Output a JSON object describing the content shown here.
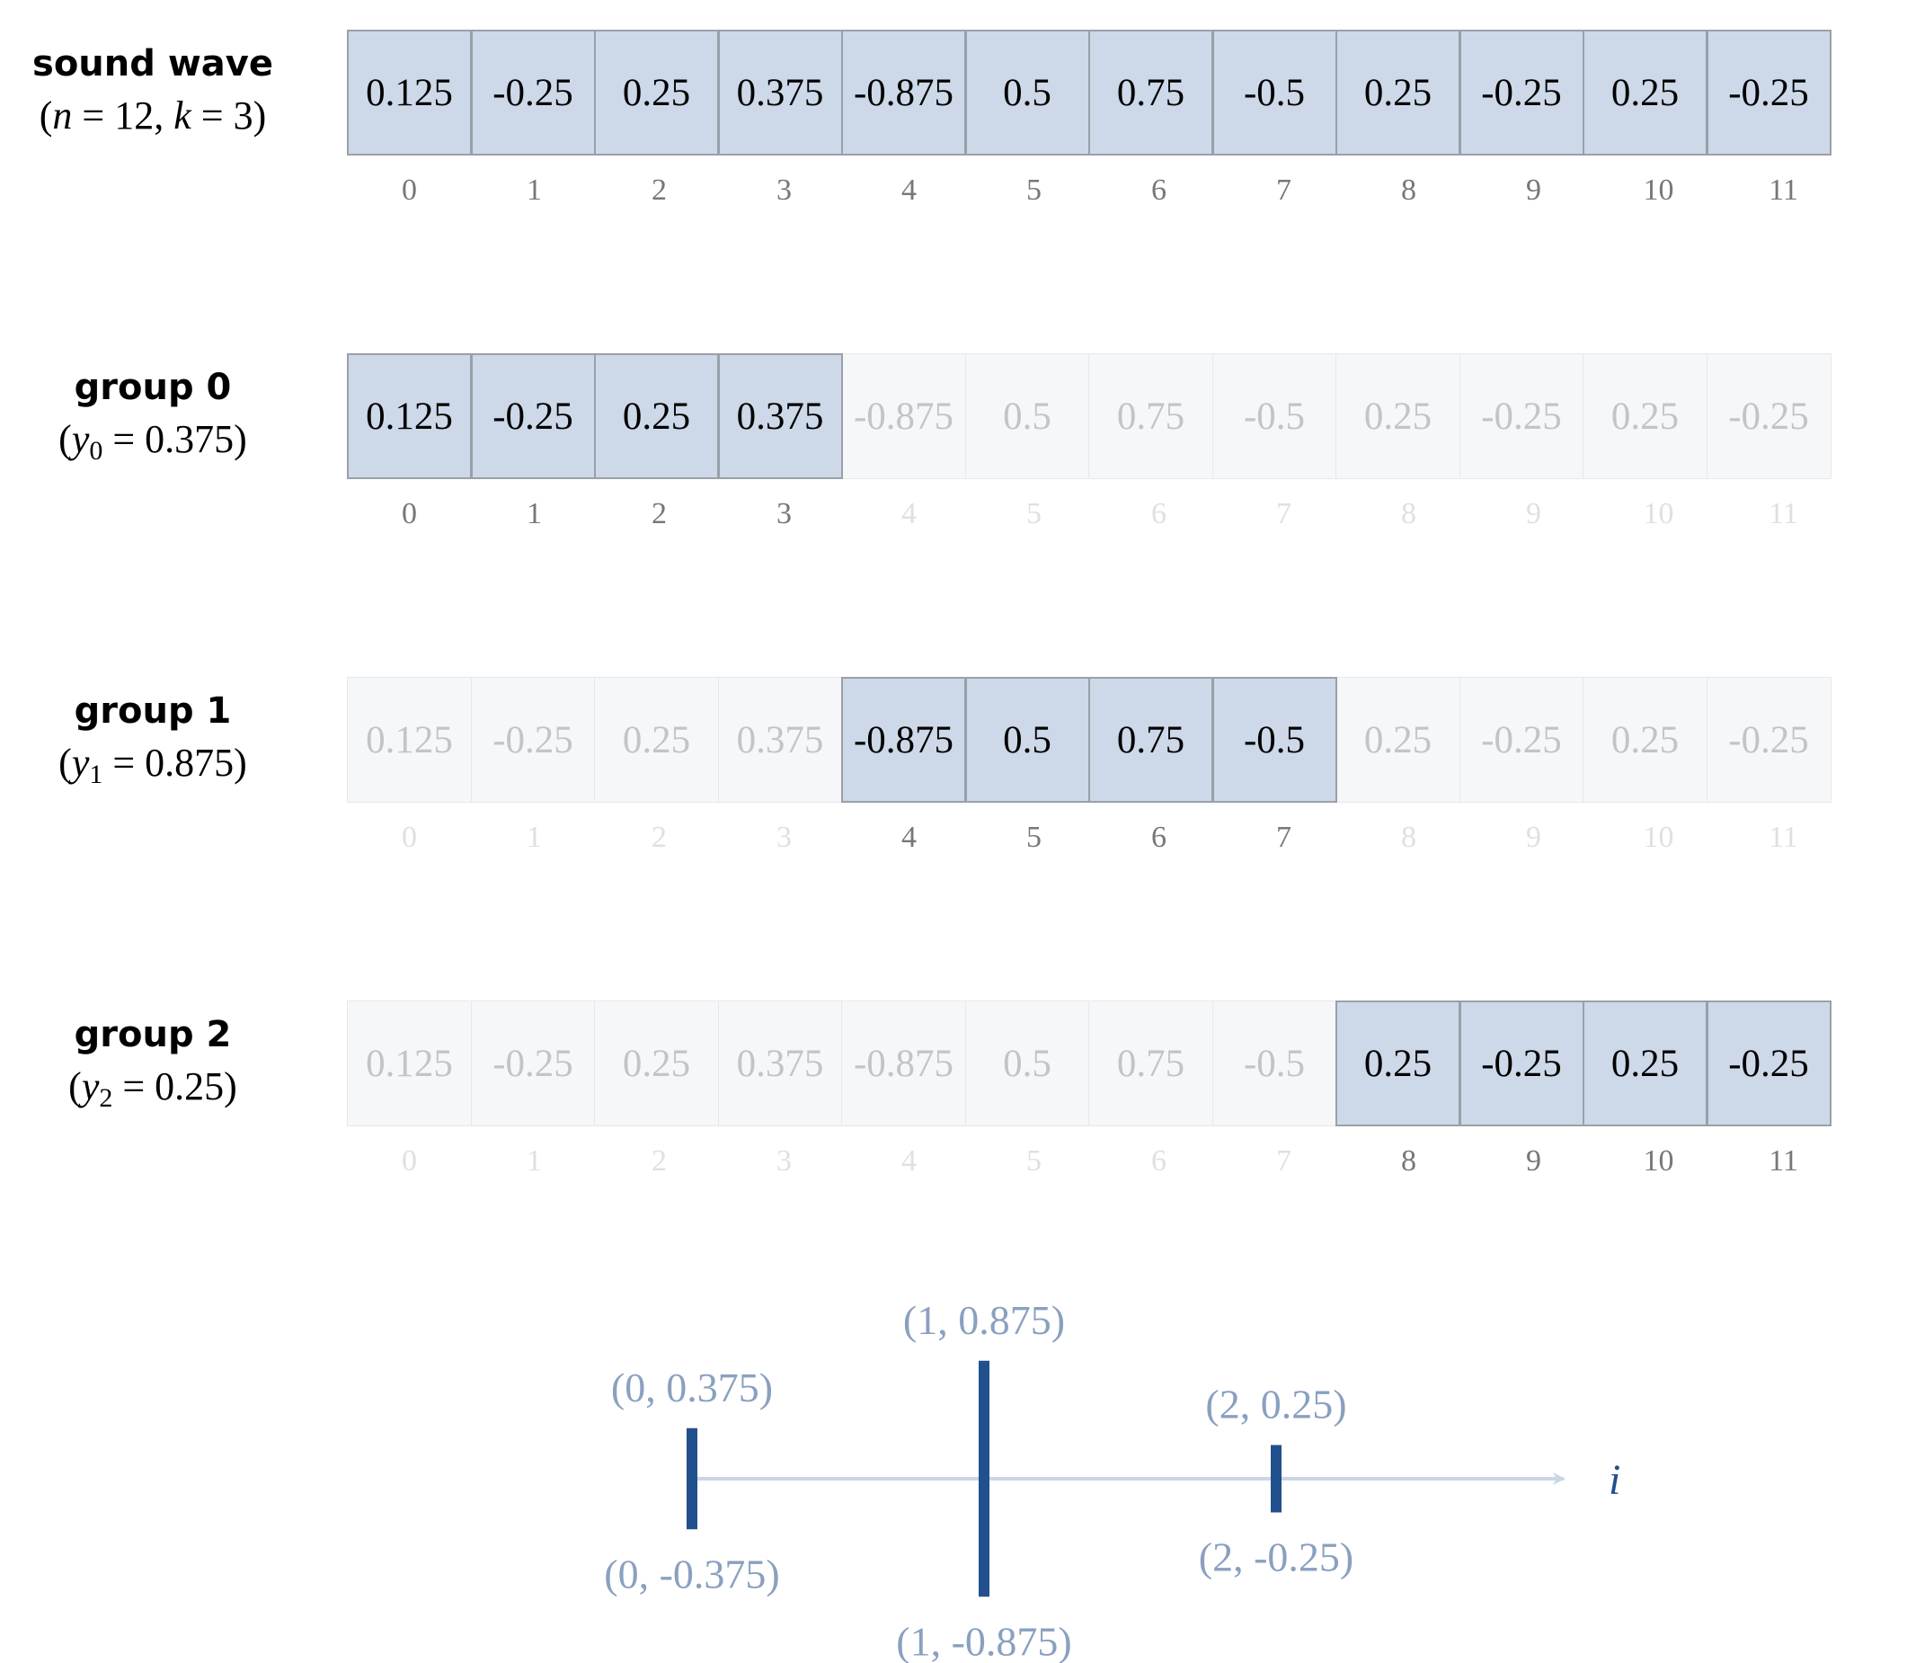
{
  "rows": [
    {
      "title": "sound wave",
      "subtitle_html": "(<i>n</i> = 12, <i>k</i> = 3)",
      "active_from": 0,
      "active_to": 11
    },
    {
      "title": "group 0",
      "subtitle_html": "(<i>y</i><sub>0</sub> = 0.375)",
      "active_from": 0,
      "active_to": 3
    },
    {
      "title": "group 1",
      "subtitle_html": "(<i>y</i><sub>1</sub> = 0.875)",
      "active_from": 4,
      "active_to": 7
    },
    {
      "title": "group 2",
      "subtitle_html": "(<i>y</i><sub>2</sub> = 0.25)",
      "active_from": 8,
      "active_to": 11
    }
  ],
  "values": [
    "0.125",
    "-0.25",
    "0.25",
    "0.375",
    "-0.875",
    "0.5",
    "0.75",
    "-0.5",
    "0.25",
    "-0.25",
    "0.25",
    "-0.25"
  ],
  "indices": [
    "0",
    "1",
    "2",
    "3",
    "4",
    "5",
    "6",
    "7",
    "8",
    "9",
    "10",
    "11"
  ],
  "stems": [
    {
      "i": 0,
      "y": 0.375,
      "top_label": "(0, 0.375)",
      "bottom_label": "(0, -0.375)"
    },
    {
      "i": 1,
      "y": 0.875,
      "top_label": "(1, 0.875)",
      "bottom_label": "(1, -0.875)"
    },
    {
      "i": 2,
      "y": 0.25,
      "top_label": "(2, 0.25)",
      "bottom_label": "(2, -0.25)"
    }
  ],
  "axis_label": "i",
  "colors": {
    "active_cell": "#cdd8e8",
    "inactive_cell": "#f6f7f9",
    "stem": "#21508e",
    "axis": "#c8d6e6",
    "point_label": "#8aa0c0"
  }
}
